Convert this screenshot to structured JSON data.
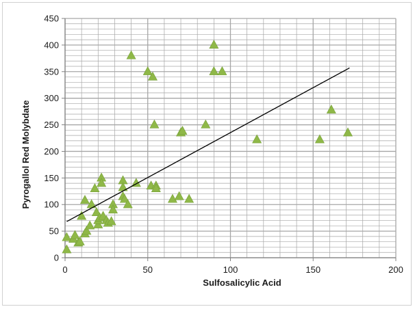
{
  "chart_data": {
    "type": "scatter",
    "title": "",
    "xlabel": "Sulfosalicylic Acid",
    "ylabel": "Pyrogallol Red Molybdate",
    "xlim": [
      0,
      200
    ],
    "ylim": [
      0,
      450
    ],
    "x_ticks": [
      0,
      50,
      100,
      150,
      200
    ],
    "y_ticks": [
      0,
      50,
      100,
      150,
      200,
      250,
      300,
      350,
      400,
      450
    ],
    "grid": true,
    "legend": "none",
    "marker": "triangle",
    "colors": {
      "marker": "#8fb848",
      "marker_edge": "#77a03a",
      "trendline": "#000000",
      "grid": "#a6a6a6",
      "axis": "#808080"
    },
    "series": [
      {
        "points": [
          [
            1,
            15
          ],
          [
            1,
            38
          ],
          [
            5,
            35
          ],
          [
            6,
            42
          ],
          [
            8,
            28
          ],
          [
            9,
            30
          ],
          [
            10,
            78
          ],
          [
            12,
            108
          ],
          [
            12,
            45
          ],
          [
            13,
            50
          ],
          [
            15,
            60
          ],
          [
            16,
            100
          ],
          [
            18,
            130
          ],
          [
            19,
            85
          ],
          [
            20,
            62
          ],
          [
            20,
            70
          ],
          [
            21,
            75
          ],
          [
            22,
            150
          ],
          [
            22,
            140
          ],
          [
            23,
            78
          ],
          [
            25,
            70
          ],
          [
            26,
            65
          ],
          [
            28,
            68
          ],
          [
            29,
            100
          ],
          [
            29,
            90
          ],
          [
            35,
            145
          ],
          [
            35,
            132
          ],
          [
            35,
            115
          ],
          [
            36,
            110
          ],
          [
            38,
            100
          ],
          [
            40,
            380
          ],
          [
            43,
            140
          ],
          [
            50,
            350
          ],
          [
            52,
            135
          ],
          [
            53,
            340
          ],
          [
            54,
            250
          ],
          [
            55,
            135
          ],
          [
            55,
            130
          ],
          [
            65,
            110
          ],
          [
            69,
            115
          ],
          [
            70,
            235
          ],
          [
            71,
            238
          ],
          [
            75,
            110
          ],
          [
            85,
            250
          ],
          [
            90,
            400
          ],
          [
            90,
            350
          ],
          [
            95,
            350
          ],
          [
            116,
            222
          ],
          [
            154,
            222
          ],
          [
            161,
            278
          ],
          [
            171,
            235
          ]
        ]
      }
    ],
    "trendline": {
      "x": [
        1,
        172
      ],
      "y": [
        68,
        357
      ]
    }
  }
}
